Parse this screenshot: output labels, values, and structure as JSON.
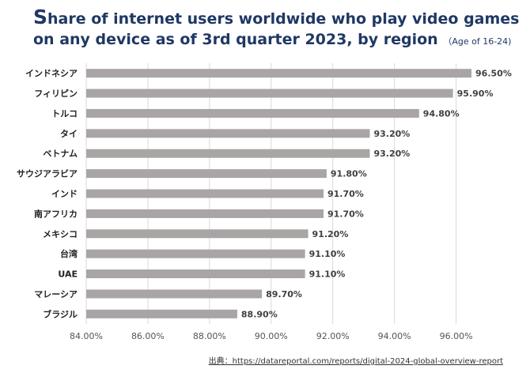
{
  "title": {
    "first_letter": "S",
    "rest": "hare of internet users worldwide who play video games on any device as of 3rd quarter 2023, by region",
    "subtitle": "（Age of 16-24)"
  },
  "source": "出典：https://datareportal.com/reports/digital-2024-global-overview-report",
  "chart_data": {
    "type": "bar",
    "orientation": "horizontal",
    "categories": [
      "インドネシア",
      "フィリピン",
      "トルコ",
      "タイ",
      "ベトナム",
      "サウジアラビア",
      "インド",
      "南アフリカ",
      "メキシコ",
      "台湾",
      "UAE",
      "マレーシア",
      "ブラジル"
    ],
    "values": [
      96.5,
      95.9,
      94.8,
      93.2,
      93.2,
      91.8,
      91.7,
      91.7,
      91.2,
      91.1,
      91.1,
      89.7,
      88.9
    ],
    "value_labels": [
      "96.50%",
      "95.90%",
      "94.80%",
      "93.20%",
      "93.20%",
      "91.80%",
      "91.70%",
      "91.70%",
      "91.20%",
      "91.10%",
      "91.10%",
      "89.70%",
      "88.90%"
    ],
    "xlim": [
      84,
      97.5
    ],
    "xticks": [
      84,
      86,
      88,
      90,
      92,
      94,
      96
    ],
    "xtick_labels": [
      "84.00%",
      "86.00%",
      "88.00%",
      "90.00%",
      "92.00%",
      "94.00%",
      "96.00%"
    ],
    "bar_color": "#a9a5a5",
    "grid": true,
    "legend": "none"
  }
}
